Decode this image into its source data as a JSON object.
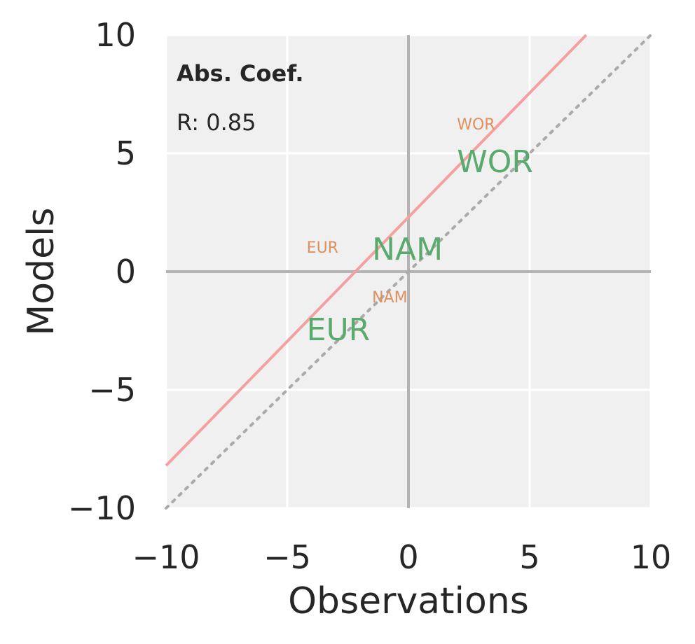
{
  "chart_data": {
    "type": "scatter",
    "xlabel": "Observations",
    "ylabel": "Models",
    "xlim": [
      -10,
      10
    ],
    "ylim": [
      -10,
      10
    ],
    "xticks": [
      -10,
      -5,
      0,
      5,
      10
    ],
    "yticks": [
      -10,
      -5,
      0,
      5,
      10
    ],
    "grid": true,
    "background": "#f0f0f0",
    "annotation_title": "Abs. Coef.",
    "annotation_stat": "R: 0.85",
    "series": [
      {
        "color": "#5aaa6e",
        "size": "large",
        "points": [
          {
            "label": "WOR",
            "x": 2.0,
            "y": 4.2
          },
          {
            "label": "NAM",
            "x": -1.5,
            "y": 0.5
          },
          {
            "label": "EUR",
            "x": -4.2,
            "y": -2.9
          }
        ]
      },
      {
        "color": "#e0905e",
        "size": "small",
        "points": [
          {
            "label": "WOR",
            "x": 2.0,
            "y": 6.0
          },
          {
            "label": "NAM",
            "x": -1.5,
            "y": -1.3
          },
          {
            "label": "EUR",
            "x": -4.2,
            "y": 0.8
          }
        ]
      }
    ],
    "fit_line": {
      "color": "#f4a0a0",
      "slope": 1.05,
      "intercept": 2.3
    },
    "identity_line": {
      "color": "#aaaaaa",
      "style": "dotted"
    }
  }
}
